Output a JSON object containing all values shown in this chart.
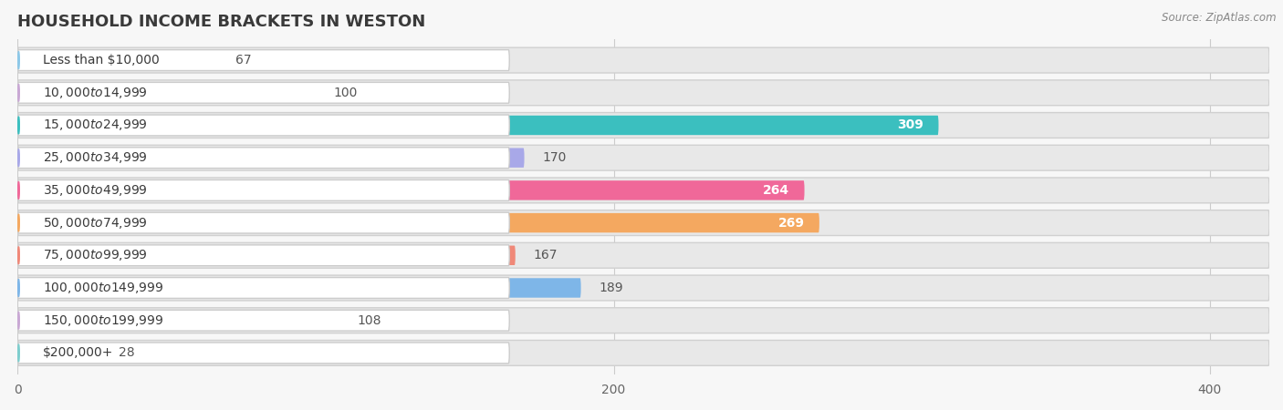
{
  "title": "HOUSEHOLD INCOME BRACKETS IN WESTON",
  "source": "Source: ZipAtlas.com",
  "categories": [
    "Less than $10,000",
    "$10,000 to $14,999",
    "$15,000 to $24,999",
    "$25,000 to $34,999",
    "$35,000 to $49,999",
    "$50,000 to $74,999",
    "$75,000 to $99,999",
    "$100,000 to $149,999",
    "$150,000 to $199,999",
    "$200,000+"
  ],
  "values": [
    67,
    100,
    309,
    170,
    264,
    269,
    167,
    189,
    108,
    28
  ],
  "bar_colors": [
    "#8DC8E8",
    "#C9A8D4",
    "#3BBFBF",
    "#A8A8E8",
    "#F06899",
    "#F4A860",
    "#F08878",
    "#7EB6E8",
    "#C9A8D4",
    "#7ECECE"
  ],
  "xlim_max": 420,
  "xticks": [
    0,
    200,
    400
  ],
  "background_color": "#f7f7f7",
  "bar_bg_color": "#e8e8e8",
  "title_color": "#3a3a3a",
  "source_color": "#888888",
  "value_fontsize": 10,
  "title_fontsize": 13,
  "tick_fontsize": 10,
  "cat_fontsize": 10,
  "inside_label_threshold": 200,
  "inside_label_color": "#ffffff",
  "outside_label_color": "#555555"
}
